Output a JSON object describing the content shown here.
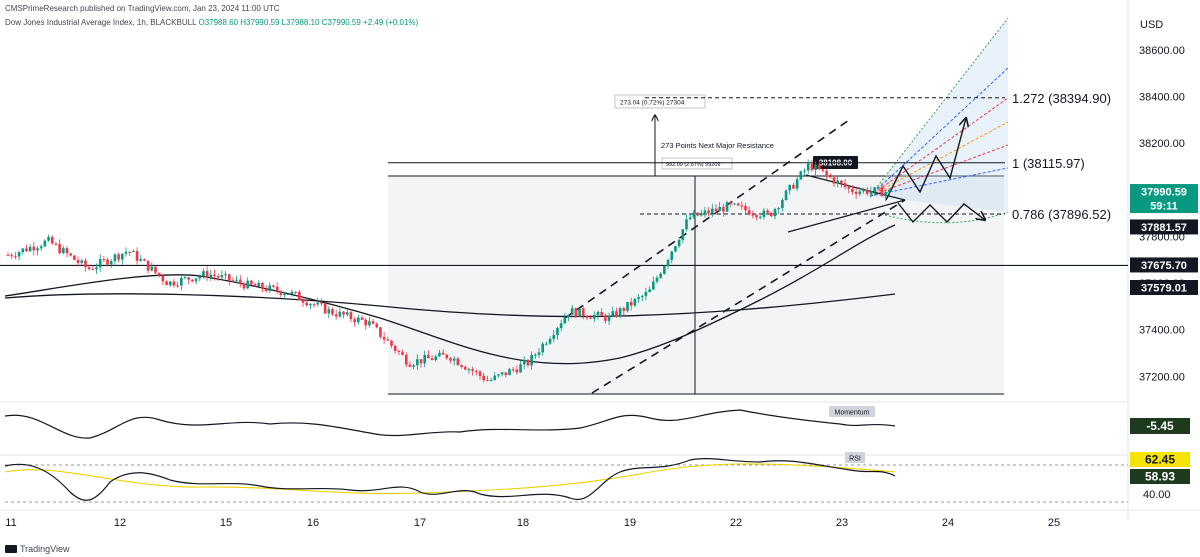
{
  "publish_line": "CMSPrimeResearch published on TradingView.com, Jan 23, 2024 11:00 UTC",
  "symbol_line": {
    "name": "Dow Jones Industrial Average Index, 1h, BLACKBULL",
    "ohlc": "O37988.60  H37990.59  L37988.10  C37990.59  +2.49 (+0.01%)"
  },
  "currency": "USD",
  "footer": {
    "brand": "TradingView"
  },
  "colors": {
    "up": "#089981",
    "down": "#f23645",
    "accent": "#2962ff"
  },
  "chart_data": {
    "type": "candlestick",
    "interval": "1h",
    "x_tick_labels": [
      "11",
      "12",
      "15",
      "16",
      "17",
      "18",
      "19",
      "22",
      "23",
      "24",
      "25"
    ],
    "y_ticks": [
      37200,
      37400,
      37600,
      37800,
      38000,
      38200,
      38400,
      38600
    ],
    "y_range": [
      37120,
      38780
    ],
    "path_points": [
      {
        "d": "11",
        "v": 37720
      },
      {
        "d": "11",
        "v": 37780
      },
      {
        "d": "12",
        "v": 37660
      },
      {
        "d": "12",
        "v": 37740
      },
      {
        "d": "12",
        "v": 37600
      },
      {
        "d": "15",
        "v": 37640
      },
      {
        "d": "15",
        "v": 37590
      },
      {
        "d": "16",
        "v": 37560
      },
      {
        "d": "16",
        "v": 37480
      },
      {
        "d": "17",
        "v": 37430
      },
      {
        "d": "17",
        "v": 37260
      },
      {
        "d": "18",
        "v": 37290
      },
      {
        "d": "18",
        "v": 37180
      },
      {
        "d": "18",
        "v": 37260
      },
      {
        "d": "19",
        "v": 37480
      },
      {
        "d": "19",
        "v": 37450
      },
      {
        "d": "19",
        "v": 37560
      },
      {
        "d": "19",
        "v": 37880
      },
      {
        "d": "22",
        "v": 37930
      },
      {
        "d": "22",
        "v": 37890
      },
      {
        "d": "22",
        "v": 38108
      },
      {
        "d": "22",
        "v": 38000
      },
      {
        "d": "23",
        "v": 37990
      }
    ],
    "price_labels": [
      {
        "text": "37990.59",
        "value": 37990.59,
        "style": "current"
      },
      {
        "text": "59:11",
        "value": 37990.59,
        "style": "countdown"
      },
      {
        "text": "37881.57",
        "value": 37881.57,
        "style": "dark"
      },
      {
        "text": "37675.70",
        "value": 37675.7,
        "style": "dark"
      },
      {
        "text": "37579.01",
        "value": 37579.01,
        "style": "dark"
      }
    ],
    "fib_levels": [
      {
        "label": "1.272 (38394.90)",
        "value": 38394.9
      },
      {
        "label": "1 (38115.97)",
        "value": 38115.97
      },
      {
        "label": "0.786 (37896.52)",
        "value": 37896.52
      }
    ],
    "horizontal_lines": [
      37675.7
    ],
    "annotations": [
      {
        "text": "273.04 (0.72%) 27304"
      },
      {
        "text": "273 Points Next Major Resistance"
      },
      {
        "text": "992.09 (2.67%) 99209"
      },
      {
        "text": "38108.00"
      }
    ],
    "indicators": [
      {
        "name": "Momentum",
        "value": "-5.45"
      },
      {
        "name": "RSI",
        "values": [
          "62.45",
          "58.93"
        ],
        "axis_label": "40.00"
      }
    ]
  }
}
